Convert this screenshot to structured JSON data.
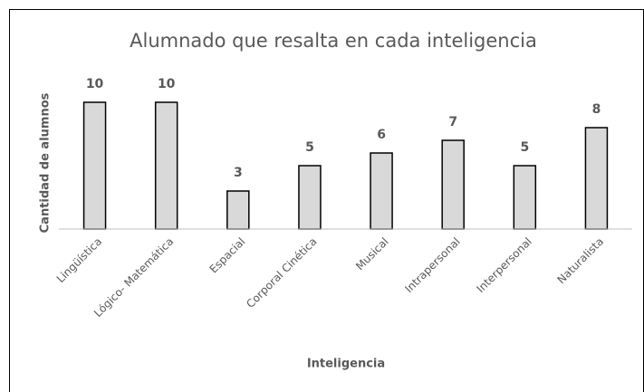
{
  "chart_data": {
    "type": "bar",
    "title": "Alumnado que resalta en cada inteligencia",
    "x_label": "Inteligencia",
    "y_label": "Cantidad de alumnos",
    "categories": [
      "Lingüística",
      "Lógico- Matemática",
      "Espacial",
      "Corporal Cinética",
      "Musical",
      "Intrapersonal",
      "Interpersonal",
      "Naturalista"
    ],
    "values": [
      10,
      10,
      3,
      5,
      6,
      7,
      5,
      8
    ],
    "color": "#d9d9d9",
    "ylim": [
      0,
      10
    ]
  }
}
